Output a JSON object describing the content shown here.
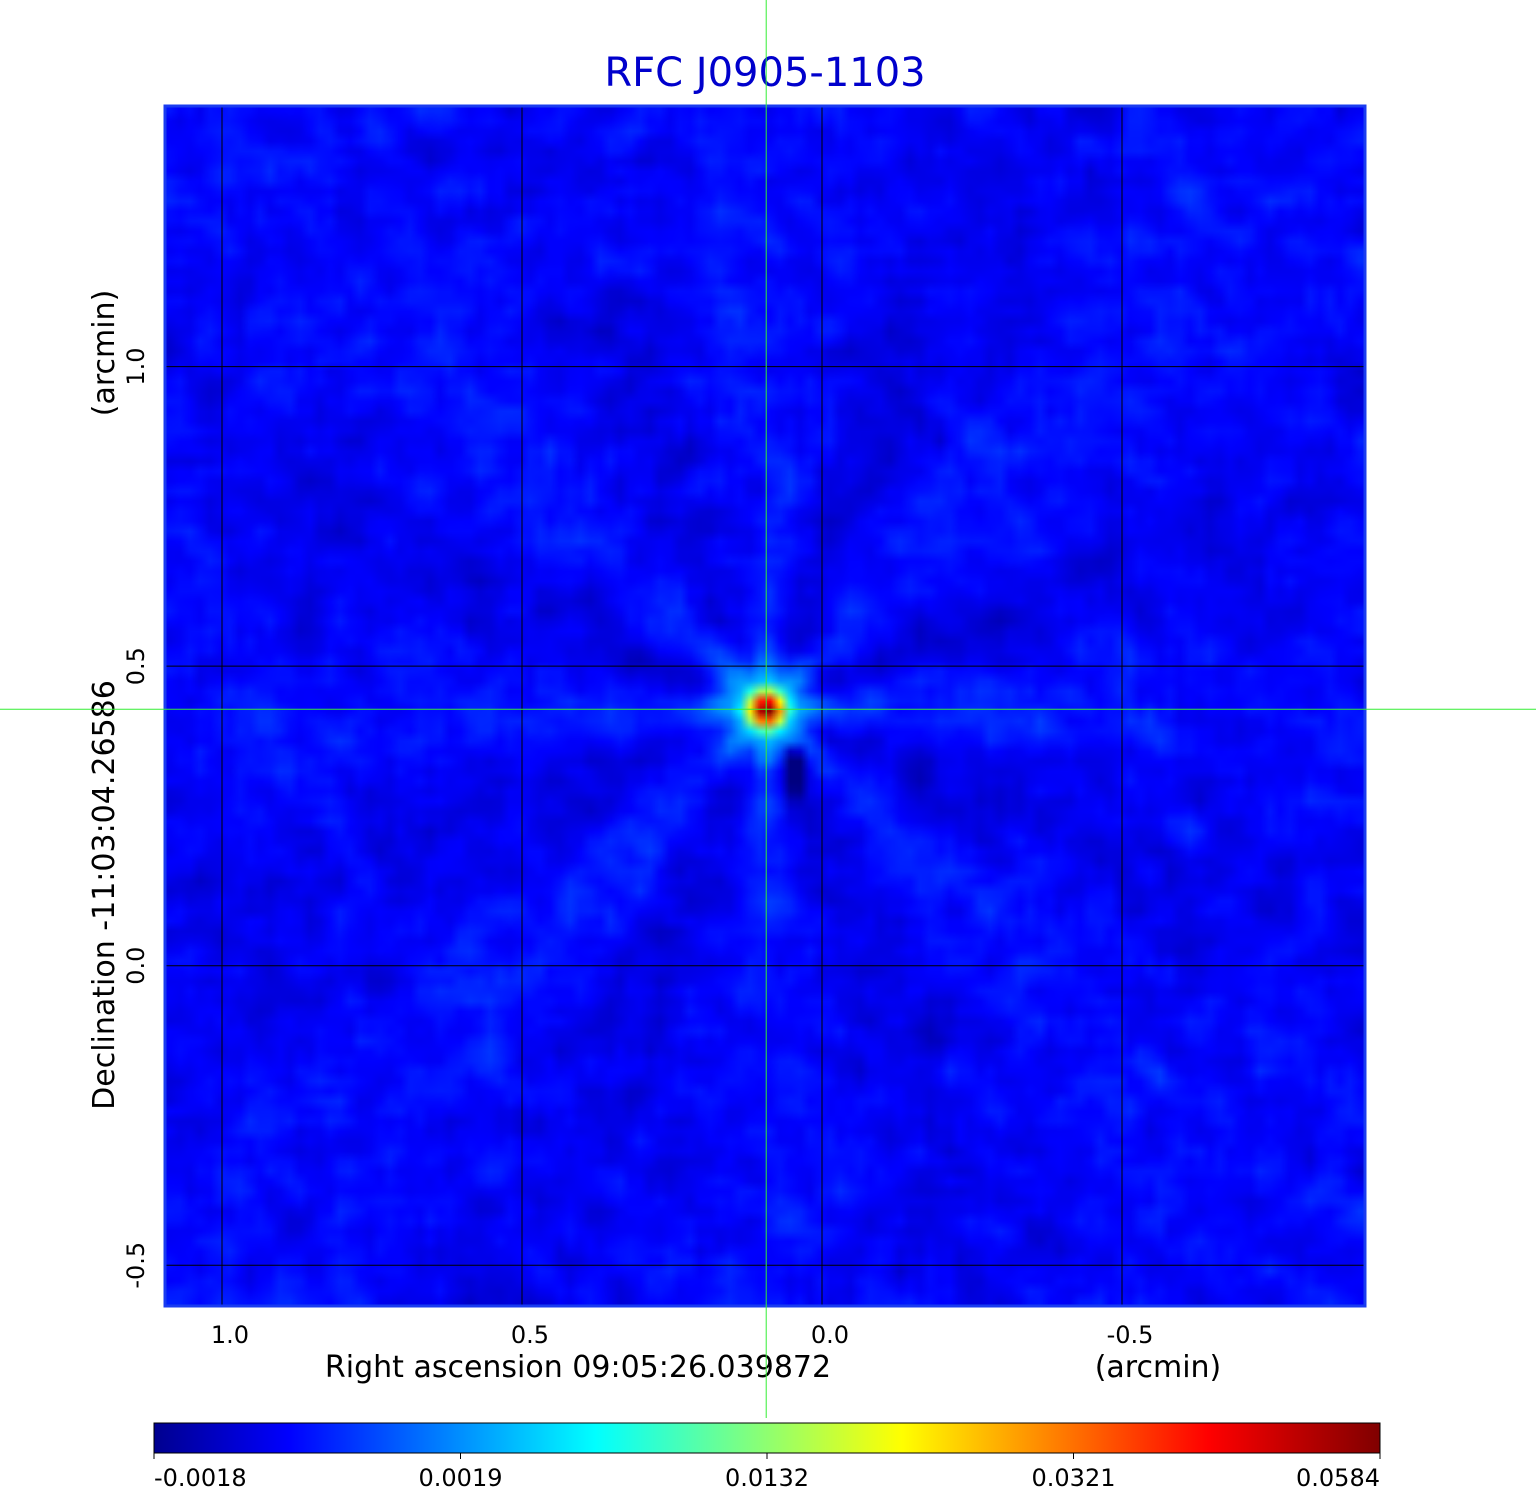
{
  "chart_data": {
    "type": "heatmap",
    "title": "RFC J0905-1103",
    "title_color": "#0000cc",
    "xlabel": "Right ascension  09:05:26.039872",
    "xunit": "(arcmin)",
    "ylabel": "Declination  -11:03:04.26586",
    "yunit": "(arcmin)",
    "x_ticks": [
      "1.0",
      "0.5",
      "0.0",
      "-0.5"
    ],
    "x_tick_values": [
      1.0,
      0.5,
      0.0,
      -0.5
    ],
    "y_ticks": [
      "1.0",
      "0.5",
      "0.0",
      "-0.5"
    ],
    "y_tick_values": [
      1.0,
      0.5,
      0.0,
      -0.5
    ],
    "xlim": [
      1.095,
      -0.905
    ],
    "ylim": [
      -0.568,
      1.435
    ],
    "grid": true,
    "grid_color": "#000000",
    "crosshair": {
      "x": 0.093,
      "y": 0.428,
      "color": "#33ee33"
    },
    "source": {
      "x": 0.093,
      "y": 0.428,
      "peak": 0.0584
    },
    "negative_sidelobe": {
      "x": 0.045,
      "y": 0.33,
      "value": -0.0018
    },
    "background_level": 0.0,
    "colormap": "jet",
    "colorbar": {
      "ticks": [
        "-0.0018",
        "0.0019",
        "0.0132",
        "0.0321",
        "0.0584"
      ],
      "tick_values": [
        -0.0018,
        0.0019,
        0.0132,
        0.0321,
        0.0584
      ],
      "min": -0.0018,
      "max": 0.0584
    }
  }
}
